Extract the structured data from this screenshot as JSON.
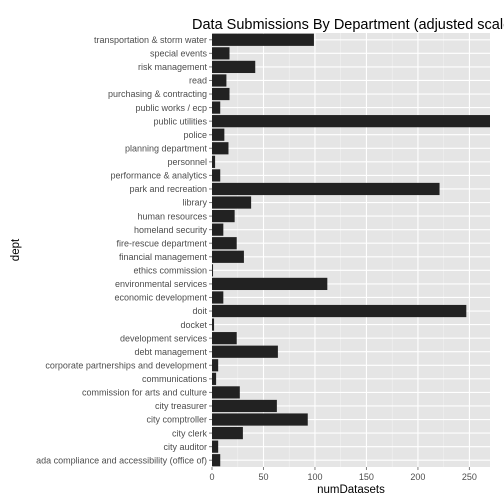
{
  "chart_data": {
    "type": "bar",
    "orientation": "horizontal",
    "title": "Data Submissions By Department (adjusted scale",
    "xlabel": "numDatasets",
    "ylabel": "dept",
    "xlim": [
      0,
      270
    ],
    "xticks": [
      0,
      50,
      100,
      150,
      200,
      250
    ],
    "grid": true,
    "colors": {
      "panel": "#e5e5e5",
      "grid_major": "#ffffff",
      "grid_minor": "#f2f2f2",
      "bar": "#222222",
      "tick_text": "#4d4d4d"
    },
    "categories": [
      "transportation & storm water",
      "special events",
      "risk management",
      "read",
      "purchasing & contracting",
      "public works / ecp",
      "public utilities",
      "police",
      "planning department",
      "personnel",
      "performance & analytics",
      "park and recreation",
      "library",
      "human resources",
      "homeland security",
      "fire-rescue department",
      "financial management",
      "ethics commission",
      "environmental services",
      "economic development",
      "doit",
      "docket",
      "development services",
      "debt management",
      "corporate partnerships and development",
      "communications",
      "commission for arts and culture",
      "city treasurer",
      "city comptroller",
      "city clerk",
      "city auditor",
      "ada compliance and accessibility (office of)"
    ],
    "values": [
      99,
      17,
      42,
      14,
      17,
      8,
      275,
      12,
      16,
      3,
      8,
      221,
      38,
      22,
      11,
      24,
      31,
      1,
      112,
      11,
      247,
      2,
      24,
      64,
      6,
      4,
      27,
      63,
      93,
      30,
      6,
      8
    ]
  }
}
